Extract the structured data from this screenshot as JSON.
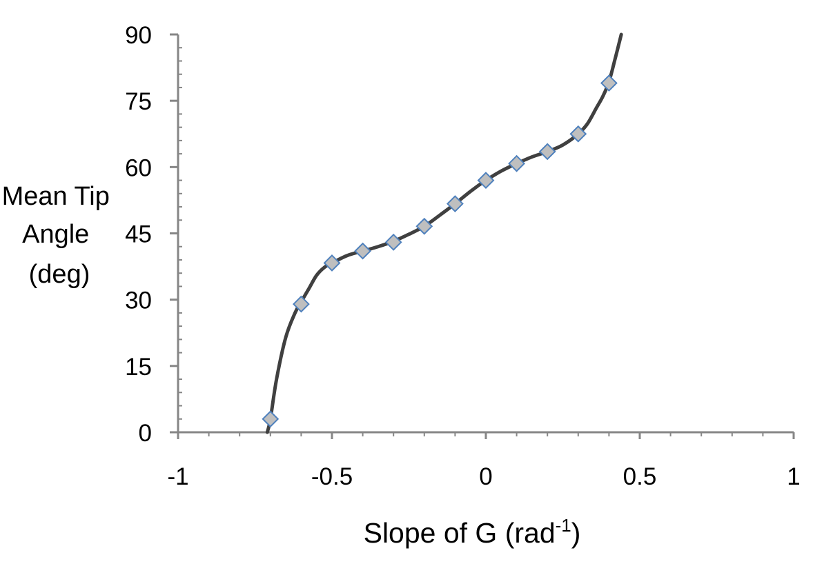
{
  "chart_data": {
    "type": "scatter",
    "title": "",
    "xlabel": "Slope of G (rad",
    "xlabel_superscript": "-1",
    "xlabel_suffix": ")",
    "ylabel_lines": [
      "Mean Tip",
      "Angle",
      "(deg)"
    ],
    "xlim": [
      -1,
      1
    ],
    "ylim": [
      0,
      90
    ],
    "xticks": [
      -1,
      -0.5,
      0,
      0.5,
      1
    ],
    "xtick_labels": [
      "-1",
      "-0.5",
      "0",
      "0.5",
      "1"
    ],
    "yticks": [
      0,
      15,
      30,
      45,
      60,
      75,
      90
    ],
    "ytick_labels": [
      "0",
      "15",
      "30",
      "45",
      "60",
      "75",
      "90"
    ],
    "grid": false,
    "legend": "none",
    "series": [
      {
        "marker": "diamond",
        "marker_fill": "#bfbfbf",
        "marker_edge": "#4f81bd",
        "line_color": "#404040",
        "smoothed_line": true,
        "x": [
          -0.7,
          -0.6,
          -0.5,
          -0.4,
          -0.3,
          -0.2,
          -0.1,
          0,
          0.1,
          0.2,
          0.3,
          0.4
        ],
        "y": [
          3,
          29,
          38.3,
          41,
          43,
          46.6,
          51.7,
          57,
          60.8,
          63.5,
          67.5,
          79
        ],
        "curve_x": [
          -0.71,
          -0.7,
          -0.68,
          -0.65,
          -0.62,
          -0.6,
          -0.575,
          -0.55,
          -0.525,
          -0.5,
          -0.45,
          -0.4,
          -0.35,
          -0.3,
          -0.25,
          -0.2,
          -0.15,
          -0.1,
          -0.05,
          0,
          0.05,
          0.1,
          0.15,
          0.2,
          0.25,
          0.3,
          0.33,
          0.36,
          0.38,
          0.4,
          0.42,
          0.44
        ],
        "curve_y": [
          0,
          3,
          12,
          21.5,
          27,
          29.5,
          32.5,
          35.5,
          37.3,
          38.3,
          40,
          41,
          42,
          43.2,
          44.8,
          46.6,
          49.1,
          51.7,
          54.5,
          57,
          59.1,
          60.8,
          62.3,
          63.5,
          65,
          67.5,
          69.8,
          73.5,
          76,
          79.3,
          84.5,
          90
        ]
      }
    ]
  }
}
